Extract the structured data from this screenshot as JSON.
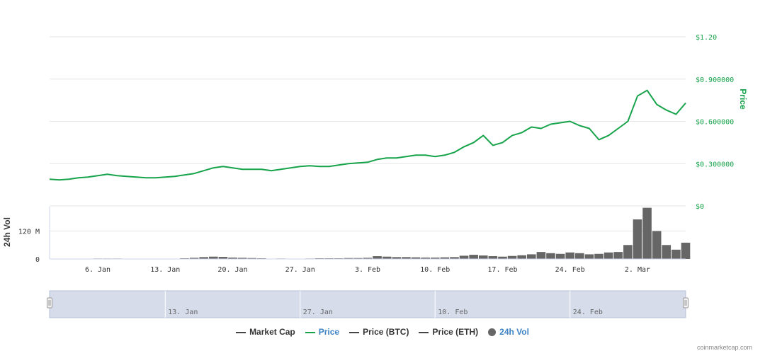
{
  "chart_data": {
    "type": "line",
    "price_axis": {
      "title": "Price",
      "ticks": [
        "$1.20",
        "$0.900000",
        "$0.600000",
        "$0.300000",
        "$0"
      ],
      "ylim": [
        0,
        1.2
      ]
    },
    "volume_axis": {
      "title": "24h Vol",
      "ticks": [
        "120 M",
        "0"
      ],
      "ylim": [
        0,
        225000000
      ]
    },
    "x_ticks": [
      "6. Jan",
      "13. Jan",
      "20. Jan",
      "27. Jan",
      "3. Feb",
      "10. Feb",
      "17. Feb",
      "24. Feb",
      "2. Mar"
    ],
    "x_range": [
      "2020-01-01",
      "2020-03-07"
    ],
    "series": [
      {
        "name": "Price",
        "color": "#16a34a",
        "x": [
          "2020-01-01",
          "2020-01-02",
          "2020-01-03",
          "2020-01-04",
          "2020-01-05",
          "2020-01-06",
          "2020-01-07",
          "2020-01-08",
          "2020-01-09",
          "2020-01-10",
          "2020-01-11",
          "2020-01-12",
          "2020-01-13",
          "2020-01-14",
          "2020-01-15",
          "2020-01-16",
          "2020-01-17",
          "2020-01-18",
          "2020-01-19",
          "2020-01-20",
          "2020-01-21",
          "2020-01-22",
          "2020-01-23",
          "2020-01-24",
          "2020-01-25",
          "2020-01-26",
          "2020-01-27",
          "2020-01-28",
          "2020-01-29",
          "2020-01-30",
          "2020-01-31",
          "2020-02-01",
          "2020-02-02",
          "2020-02-03",
          "2020-02-04",
          "2020-02-05",
          "2020-02-06",
          "2020-02-07",
          "2020-02-08",
          "2020-02-09",
          "2020-02-10",
          "2020-02-11",
          "2020-02-12",
          "2020-02-13",
          "2020-02-14",
          "2020-02-15",
          "2020-02-16",
          "2020-02-17",
          "2020-02-18",
          "2020-02-19",
          "2020-02-20",
          "2020-02-21",
          "2020-02-22",
          "2020-02-23",
          "2020-02-24",
          "2020-02-25",
          "2020-02-26",
          "2020-02-27",
          "2020-02-28",
          "2020-02-29",
          "2020-03-01",
          "2020-03-02",
          "2020-03-03",
          "2020-03-04",
          "2020-03-05",
          "2020-03-06",
          "2020-03-07"
        ],
        "values": [
          0.19,
          0.185,
          0.19,
          0.2,
          0.205,
          0.215,
          0.225,
          0.215,
          0.21,
          0.205,
          0.2,
          0.2,
          0.205,
          0.21,
          0.22,
          0.23,
          0.25,
          0.27,
          0.28,
          0.27,
          0.26,
          0.26,
          0.26,
          0.25,
          0.26,
          0.27,
          0.28,
          0.285,
          0.28,
          0.28,
          0.29,
          0.3,
          0.305,
          0.31,
          0.33,
          0.34,
          0.34,
          0.35,
          0.36,
          0.36,
          0.35,
          0.36,
          0.38,
          0.42,
          0.45,
          0.5,
          0.43,
          0.45,
          0.5,
          0.52,
          0.56,
          0.55,
          0.58,
          0.59,
          0.6,
          0.57,
          0.55,
          0.47,
          0.5,
          0.55,
          0.6,
          0.78,
          0.82,
          0.72,
          0.68,
          0.65,
          0.73
        ]
      },
      {
        "name": "24h Vol",
        "color": "#666666",
        "x": [
          "2020-01-01",
          "2020-01-02",
          "2020-01-03",
          "2020-01-04",
          "2020-01-05",
          "2020-01-06",
          "2020-01-07",
          "2020-01-08",
          "2020-01-09",
          "2020-01-10",
          "2020-01-11",
          "2020-01-12",
          "2020-01-13",
          "2020-01-14",
          "2020-01-15",
          "2020-01-16",
          "2020-01-17",
          "2020-01-18",
          "2020-01-19",
          "2020-01-20",
          "2020-01-21",
          "2020-01-22",
          "2020-01-23",
          "2020-01-24",
          "2020-01-25",
          "2020-01-26",
          "2020-01-27",
          "2020-01-28",
          "2020-01-29",
          "2020-01-30",
          "2020-01-31",
          "2020-02-01",
          "2020-02-02",
          "2020-02-03",
          "2020-02-04",
          "2020-02-05",
          "2020-02-06",
          "2020-02-07",
          "2020-02-08",
          "2020-02-09",
          "2020-02-10",
          "2020-02-11",
          "2020-02-12",
          "2020-02-13",
          "2020-02-14",
          "2020-02-15",
          "2020-02-16",
          "2020-02-17",
          "2020-02-18",
          "2020-02-19",
          "2020-02-20",
          "2020-02-21",
          "2020-02-22",
          "2020-02-23",
          "2020-02-24",
          "2020-02-25",
          "2020-02-26",
          "2020-02-27",
          "2020-02-28",
          "2020-02-29",
          "2020-03-01",
          "2020-03-02",
          "2020-03-03",
          "2020-03-04",
          "2020-03-05",
          "2020-03-06",
          "2020-03-07"
        ],
        "values": [
          0,
          0,
          0,
          0,
          0,
          2000000,
          2000000,
          2000000,
          0,
          0,
          0,
          0,
          0,
          0,
          3000000,
          5000000,
          8000000,
          10000000,
          9000000,
          6000000,
          5000000,
          4000000,
          3000000,
          0,
          2000000,
          0,
          0,
          2000000,
          3000000,
          3000000,
          3000000,
          4000000,
          4000000,
          5000000,
          12000000,
          10000000,
          8000000,
          8000000,
          7000000,
          6000000,
          6000000,
          7000000,
          8000000,
          14000000,
          18000000,
          15000000,
          12000000,
          10000000,
          13000000,
          16000000,
          20000000,
          30000000,
          25000000,
          22000000,
          28000000,
          25000000,
          20000000,
          22000000,
          28000000,
          30000000,
          60000000,
          170000000,
          220000000,
          120000000,
          60000000,
          40000000,
          70000000
        ]
      }
    ],
    "navigator_labels": [
      "13. Jan",
      "27. Jan",
      "10. Feb",
      "24. Feb"
    ]
  },
  "legend": [
    {
      "label": "Market Cap",
      "color": "#444444",
      "kind": "line",
      "active": false
    },
    {
      "label": "Price",
      "color": "#16a34a",
      "kind": "line",
      "active": true
    },
    {
      "label": "Price (BTC)",
      "color": "#444444",
      "kind": "line",
      "active": false
    },
    {
      "label": "Price (ETH)",
      "color": "#444444",
      "kind": "line",
      "active": false
    },
    {
      "label": "24h Vol",
      "color": "#666666",
      "kind": "dot",
      "active": true
    }
  ],
  "credit": "coinmarketcap.com",
  "colors": {
    "price": "#16a34a",
    "volume_bar": "#666666",
    "grid": "#e6e6e6",
    "navigator_fill": "#d6dcea",
    "active_legend_text": "#3b82c4"
  }
}
